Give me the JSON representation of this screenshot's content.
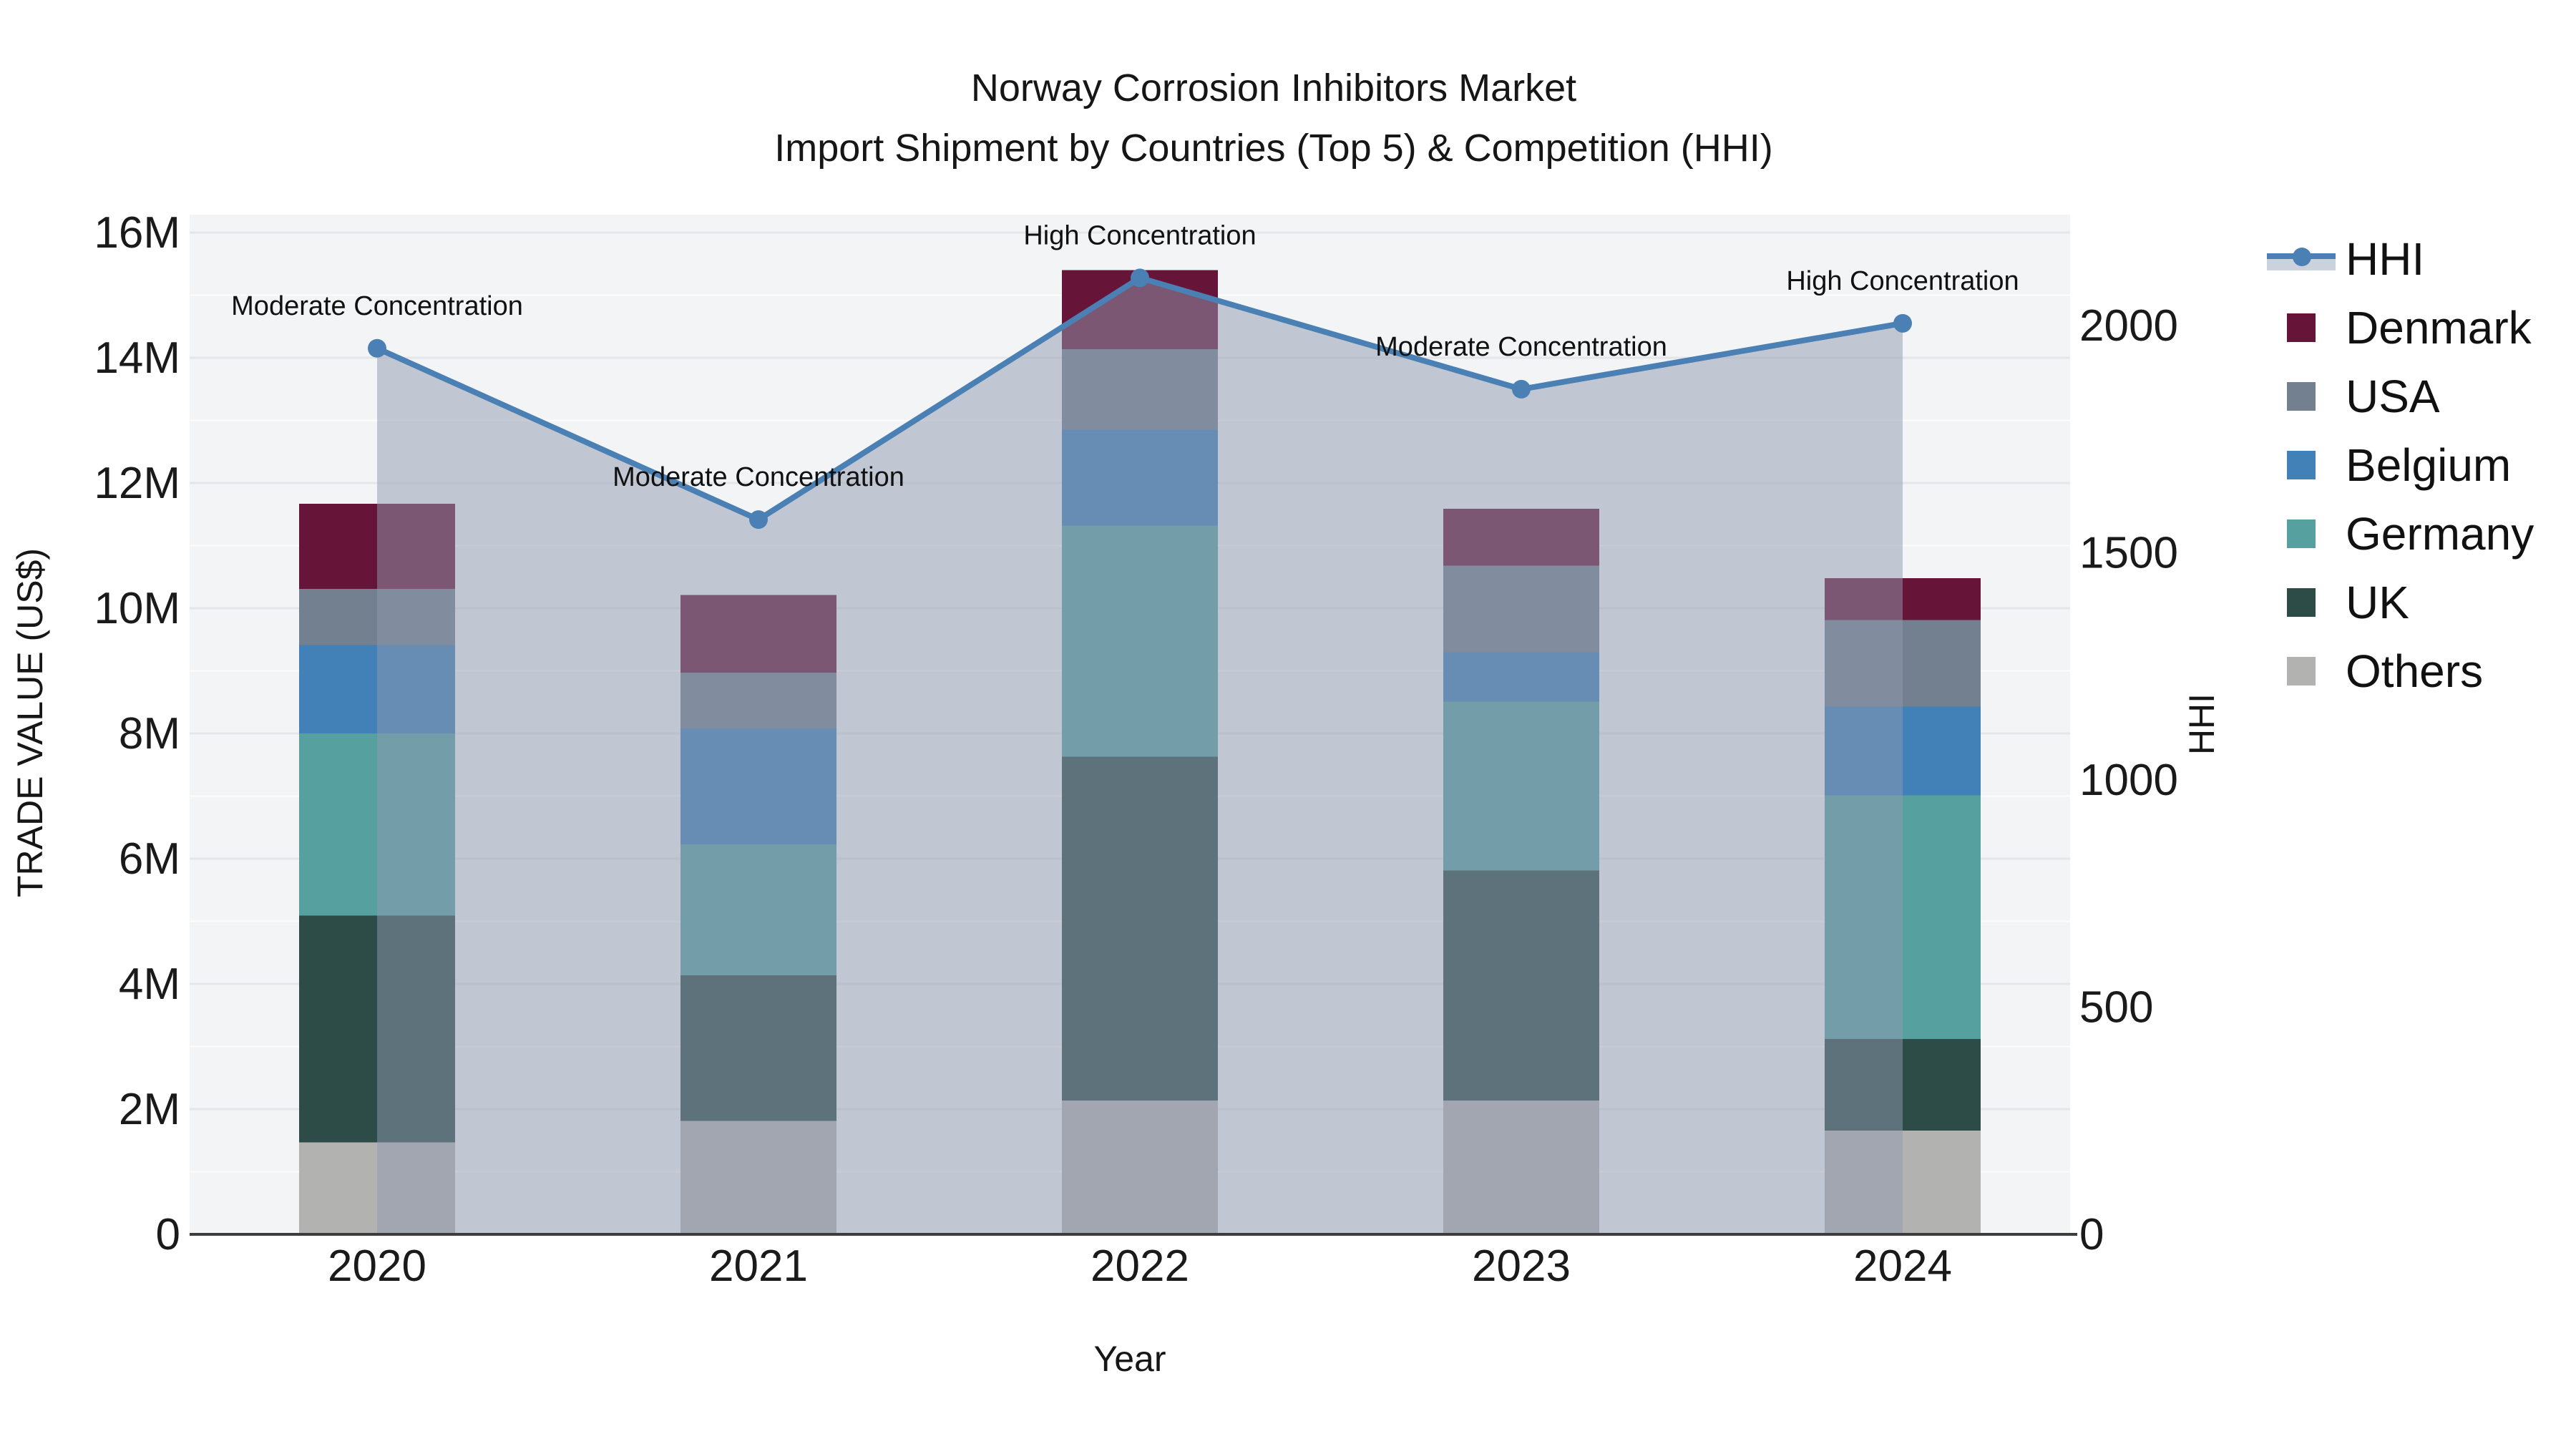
{
  "header": {
    "title": "Norway Corrosion Inhibitors Market",
    "subtitle": "Import Shipment by Countries (Top 5) & Competition (HHI)"
  },
  "axes": {
    "xlabel": "Year",
    "ylabel": "TRADE VALUE (US$)",
    "y2label": "HHI"
  },
  "chart_data": {
    "type": "bar",
    "title": "Norway Corrosion Inhibitors Market",
    "subtitle": "Import Shipment by Countries (Top 5) & Competition (HHI)",
    "xlabel": "Year",
    "ylabel": "TRADE VALUE (US$)",
    "y2label": "HHI",
    "categories": [
      "2020",
      "2021",
      "2022",
      "2023",
      "2024"
    ],
    "value_unit": "M US$",
    "stack_order_note": "series listed bottom-to-top of stack",
    "series": [
      {
        "name": "Others",
        "color": "#b2b2b0",
        "values": [
          1.47,
          1.81,
          2.14,
          2.14,
          1.66
        ]
      },
      {
        "name": "UK",
        "color": "#2d4b47",
        "values": [
          3.62,
          2.33,
          5.49,
          3.67,
          1.46
        ]
      },
      {
        "name": "Germany",
        "color": "#57a0a0",
        "values": [
          2.91,
          2.09,
          3.69,
          2.7,
          3.89
        ]
      },
      {
        "name": "Belgium",
        "color": "#4181b8",
        "values": [
          1.41,
          1.85,
          1.53,
          0.79,
          1.42
        ]
      },
      {
        "name": "USA",
        "color": "#73808f",
        "values": [
          0.9,
          0.89,
          1.29,
          1.38,
          1.38
        ]
      },
      {
        "name": "Denmark",
        "color": "#661538",
        "values": [
          1.36,
          1.24,
          1.26,
          0.91,
          0.67
        ]
      }
    ],
    "bar_totals": [
      11.67,
      10.21,
      15.4,
      11.59,
      10.48
    ],
    "line_series": {
      "name": "HHI",
      "color": "#4a80b4",
      "area_fill_color": "rgba(143,154,175,0.5)",
      "values": [
        1950,
        1573,
        2105,
        1860,
        2005
      ]
    },
    "annotations": [
      "Moderate Concentration",
      "Moderate Concentration",
      "High Concentration",
      "Moderate Concentration",
      "High Concentration"
    ],
    "y_axis": {
      "ticks": [
        "0",
        "2M",
        "4M",
        "6M",
        "8M",
        "10M",
        "12M",
        "14M",
        "16M"
      ],
      "tick_values": [
        0,
        2,
        4,
        6,
        8,
        10,
        12,
        14,
        16
      ],
      "ylim": [
        0,
        16.38
      ]
    },
    "y2_axis": {
      "ticks": [
        "0",
        "500",
        "1000",
        "1500",
        "2000"
      ],
      "tick_values": [
        0,
        500,
        1000,
        1500,
        2000
      ],
      "ylim": [
        0,
        2244
      ]
    },
    "legend_order": [
      "HHI",
      "Denmark",
      "USA",
      "Belgium",
      "Germany",
      "UK",
      "Others"
    ],
    "grid": "on",
    "legend_position": "right",
    "plot_background": "#f3f4f5"
  }
}
